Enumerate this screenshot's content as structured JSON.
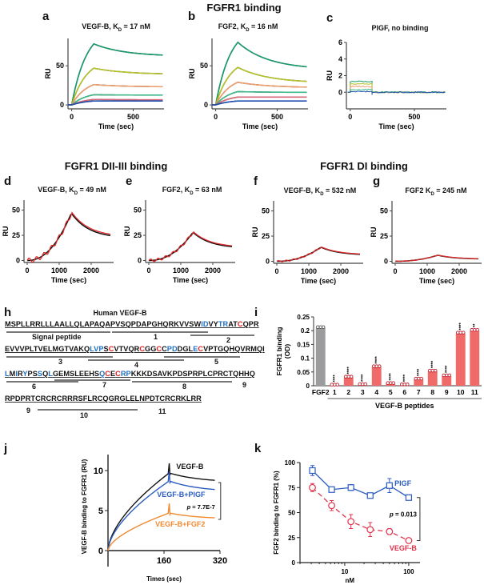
{
  "figure": {
    "section_titles": {
      "fgfr1": "FGFR1 binding",
      "dii_iii": "FGFR1 DII-III binding",
      "di": "FGFR1 DI binding"
    },
    "sequence_panel": {
      "letter": "h",
      "title": "Human VEGF-B",
      "lines": [
        "MSPLLRRLLLAALLQLAPAQAPVSQPDAPGHQRKVVSWIDVYTRATCQPR",
        "EVVVPLTVELMGTVAKQLVPSCVTVQRCGGCCPDDGLECVPTGQHQVRMQI",
        "LMIRYPSSQLGEMSLEEHSQCECRPKKKDSAVKPDSPRPLCPRCTQHHQ",
        "RPDPRTCRCRCRRRSFLRCQGRGLELNPDTCRCRKLRR"
      ],
      "segment_labels": [
        "Signal peptide",
        "1",
        "2",
        "3",
        "4",
        "5",
        "6",
        "7",
        "8",
        "9",
        "9",
        "10",
        "11"
      ],
      "colors": {
        "hydrophobic_highlight": "#1f6fc4",
        "cysteine_highlight": "#e02020"
      }
    }
  },
  "chart_data": [
    {
      "id": "a",
      "type": "line",
      "title": "VEGF-B, K_D = 17 nM",
      "title_main": "VEGF-B, K",
      "title_sub": "D",
      "title_tail": " = 17 nM",
      "xlabel": "Time (sec)",
      "ylabel": "RU",
      "xlim": [
        -30,
        750
      ],
      "ylim": [
        -5,
        85
      ],
      "xticks": [
        0,
        500
      ],
      "yticks": [
        0,
        50
      ],
      "series": [
        {
          "name": "conc6",
          "color": "#1a9a6a",
          "peak": 78,
          "end": 62
        },
        {
          "name": "conc5",
          "color": "#b5c22a",
          "peak": 47,
          "end": 39
        },
        {
          "name": "conc4",
          "color": "#f0a070",
          "peak": 26,
          "end": 23
        },
        {
          "name": "conc3",
          "color": "#3fb88a",
          "peak": 13,
          "end": 12.5
        },
        {
          "name": "conc2",
          "color": "#d66a7a",
          "peak": 7,
          "end": 6.5
        },
        {
          "name": "conc1",
          "color": "#2050b0",
          "peak": 5,
          "end": 5
        }
      ],
      "fit_color": "#111111",
      "injection_end": 180
    },
    {
      "id": "b",
      "type": "line",
      "title_main": "FGF2, K",
      "title_sub": "D",
      "title_tail": " = 16 nM",
      "xlabel": "Time (sec)",
      "ylabel": "RU",
      "xlim": [
        -30,
        750
      ],
      "ylim": [
        -5,
        85
      ],
      "xticks": [
        0,
        500
      ],
      "yticks": [
        0,
        50
      ],
      "series": [
        {
          "name": "conc6",
          "color": "#1a9a6a",
          "peak": 80,
          "end": 45
        },
        {
          "name": "conc5",
          "color": "#b5c22a",
          "peak": 48,
          "end": 28
        },
        {
          "name": "conc4",
          "color": "#f0a070",
          "peak": 29,
          "end": 22
        },
        {
          "name": "conc3",
          "color": "#3fb88a",
          "peak": 17,
          "end": 16
        },
        {
          "name": "conc2",
          "color": "#d66a7a",
          "peak": 10,
          "end": 10
        },
        {
          "name": "conc1",
          "color": "#2050b0",
          "peak": 5,
          "end": 5
        }
      ],
      "fit_color": "#111111",
      "injection_end": 180
    },
    {
      "id": "c",
      "type": "line",
      "title_main": "PlGF, no binding",
      "title_sub": "",
      "title_tail": "",
      "xlabel": "Time (sec)",
      "ylabel": "RU",
      "xlim": [
        -30,
        750
      ],
      "ylim": [
        -2,
        6
      ],
      "xticks": [
        0,
        500
      ],
      "yticks": [
        0,
        2,
        4,
        6
      ],
      "series": [
        {
          "name": "conc6",
          "color": "#1a9a6a",
          "level": 1.3
        },
        {
          "name": "conc5",
          "color": "#b5c22a",
          "level": 1.0
        },
        {
          "name": "conc4",
          "color": "#f0a070",
          "level": 0.7
        },
        {
          "name": "conc3",
          "color": "#3fb88a",
          "level": 0.3
        },
        {
          "name": "conc1",
          "color": "#2050b0",
          "level": 0.1
        }
      ],
      "injection_end": 170
    },
    {
      "id": "d",
      "type": "line",
      "title_main": "VEGF-B, K",
      "title_sub": "D",
      "title_tail": " = 49 nM",
      "xlabel": "Time (sec)",
      "ylabel": "RU",
      "xlim": [
        -100,
        2700
      ],
      "ylim": [
        -2,
        60
      ],
      "xticks": [
        0,
        1000,
        2000
      ],
      "yticks": [
        0,
        25,
        50
      ],
      "peak_time": 1380,
      "peak": 47,
      "end": 22,
      "data_color": "#e02a2a",
      "fit_color": "#111111"
    },
    {
      "id": "e",
      "type": "line",
      "title_main": "FGF2, K",
      "title_sub": "D",
      "title_tail": " = 63 nM",
      "xlabel": "Time (sec)",
      "ylabel": "RU",
      "xlim": [
        -100,
        2700
      ],
      "ylim": [
        -2,
        60
      ],
      "xticks": [
        0,
        1000,
        2000
      ],
      "yticks": [
        0,
        25,
        50
      ],
      "peak_time": 1380,
      "peak": 28,
      "end": 12,
      "data_color": "#e02a2a",
      "fit_color": "#111111"
    },
    {
      "id": "f",
      "type": "line",
      "title_main": "VEGF-B, K",
      "title_sub": "D",
      "title_tail": " = 532 nM",
      "xlabel": "Time (sec)",
      "ylabel": "RU",
      "xlim": [
        -100,
        2700
      ],
      "ylim": [
        -2,
        60
      ],
      "xticks": [
        0,
        1000,
        2000
      ],
      "yticks": [
        0,
        25,
        50
      ],
      "peak_time": 1380,
      "peak": 14,
      "end": 6,
      "data_color": "#e02a2a",
      "fit_color": "#111111"
    },
    {
      "id": "g",
      "type": "line",
      "title_main": "FGF2 K",
      "title_sub": "D",
      "title_tail": " = 245 nM",
      "xlabel": "Time (sec)",
      "ylabel": "RU",
      "xlim": [
        -100,
        2700
      ],
      "ylim": [
        -2,
        60
      ],
      "xticks": [
        0,
        1000,
        2000
      ],
      "yticks": [
        0,
        25,
        50
      ],
      "peak_time": 1330,
      "peak": 6,
      "end": 2,
      "data_color": "#e02a2a",
      "fit_color": "#111111"
    },
    {
      "id": "i",
      "type": "bar",
      "categories": [
        "FGF2",
        "1",
        "2",
        "3",
        "4",
        "5",
        "6",
        "7",
        "8",
        "9",
        "10",
        "11"
      ],
      "values": [
        0.21,
        0.001,
        0.03,
        0.003,
        0.068,
        0.007,
        0.002,
        0.023,
        0.052,
        0.035,
        0.19,
        0.2
      ],
      "significance": [
        "",
        "****",
        "****",
        "****",
        "****",
        "****",
        "****",
        "****",
        "****",
        "****",
        "****",
        "**"
      ],
      "colors": {
        "control": "#9a9c9e",
        "peptide": "#f06a6a"
      },
      "ylabel": "FGFR1 binding (OD)",
      "ylabel_line1": "FGFR1 binding",
      "ylabel_line2": "(OD)",
      "group_label": "VEGF-B peptides",
      "ylim": [
        0,
        0.25
      ],
      "yticks": [
        0,
        0.05,
        0.1,
        0.15,
        0.2,
        0.25
      ],
      "ytick_labels": [
        "0",
        "0.05",
        "0.1",
        "0.15",
        "0.2",
        "0.25"
      ]
    },
    {
      "id": "j",
      "type": "line",
      "xlabel": "Times (sec)",
      "ylabel": "VEGF-B binding to FGFR1 (RU)",
      "xlim": [
        0,
        320
      ],
      "ylim": [
        -2,
        12
      ],
      "xticks": [
        160,
        320
      ],
      "yticks": [
        0,
        5,
        10
      ],
      "series": [
        {
          "name": "VEGF-B",
          "color": "#111111",
          "peak": 9.7,
          "end": 8.5
        },
        {
          "name": "VEGF-B+PlGF",
          "color": "#2a5cc0",
          "peak": 8.7,
          "end": 7.3
        },
        {
          "name": "VEGF-B+FGF2",
          "color": "#f08a30",
          "peak": 4.7,
          "end": 3.9
        }
      ],
      "injection_end": 175,
      "annotation": "p = 7.7E-7",
      "p_label": "p",
      "p_value": " = 7.7E-7"
    },
    {
      "id": "k",
      "type": "line",
      "xlabel": "nM",
      "ylabel": "FGF2 binding to FGFR1 (%)",
      "xscale": "log",
      "xlim": [
        2,
        150
      ],
      "ylim": [
        0,
        100
      ],
      "xticks": [
        10,
        100
      ],
      "yticks": [
        0,
        25,
        50,
        75,
        100
      ],
      "series": [
        {
          "name": "PlGF",
          "color": "#2a5cc0",
          "marker": "square",
          "dash": false,
          "x": [
            3.125,
            6.25,
            12.5,
            25,
            50,
            100
          ],
          "y": [
            92,
            73,
            75,
            67,
            77,
            65
          ],
          "err": [
            5,
            2,
            3,
            2,
            7,
            1
          ]
        },
        {
          "name": "VEGF-B",
          "color": "#e0304a",
          "marker": "circle",
          "dash": true,
          "x": [
            3.125,
            6.25,
            12.5,
            25,
            50,
            100
          ],
          "y": [
            75,
            57,
            41,
            33,
            31,
            22
          ],
          "err": [
            4,
            5,
            7,
            7,
            3,
            1
          ]
        }
      ],
      "annotation": "p = 0.013",
      "p_label": "p",
      "p_value": " = 0.013"
    }
  ],
  "labels": {
    "a": "a",
    "b": "b",
    "c": "c",
    "d": "d",
    "e": "e",
    "f": "f",
    "g": "g",
    "h": "h",
    "i": "i",
    "j": "j",
    "k": "k"
  }
}
